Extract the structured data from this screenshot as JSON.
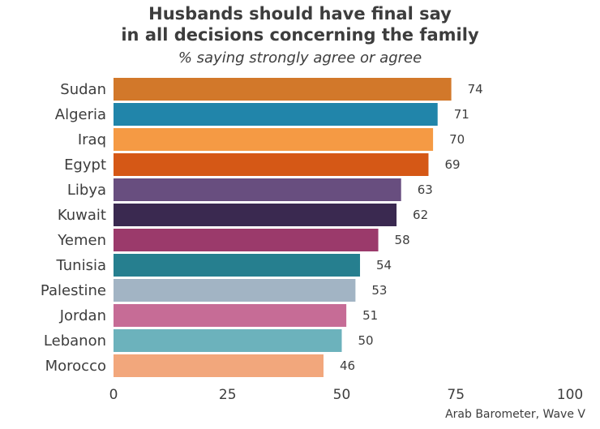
{
  "chart_data": {
    "type": "bar",
    "orientation": "horizontal",
    "title_line1": "Husbands should have final say",
    "title_line2": "in all decisions concerning the family",
    "subtitle": "% saying strongly agree or agree",
    "source": "Arab Barometer, Wave V",
    "categories": [
      "Sudan",
      "Algeria",
      "Iraq",
      "Egypt",
      "Libya",
      "Kuwait",
      "Yemen",
      "Tunisia",
      "Palestine",
      "Jordan",
      "Lebanon",
      "Morocco"
    ],
    "values": [
      74,
      71,
      70,
      69,
      63,
      62,
      58,
      54,
      53,
      51,
      50,
      46
    ],
    "colors": [
      "#d2782a",
      "#2185aa",
      "#f59a44",
      "#d55816",
      "#684e7f",
      "#3a2950",
      "#9b3a6b",
      "#267f8f",
      "#a2b4c4",
      "#c66c96",
      "#6cb2bc",
      "#f2a77c"
    ],
    "xlim": [
      0,
      100
    ],
    "xticks": [
      "0",
      "25",
      "50",
      "75",
      "100"
    ],
    "grid": false
  }
}
